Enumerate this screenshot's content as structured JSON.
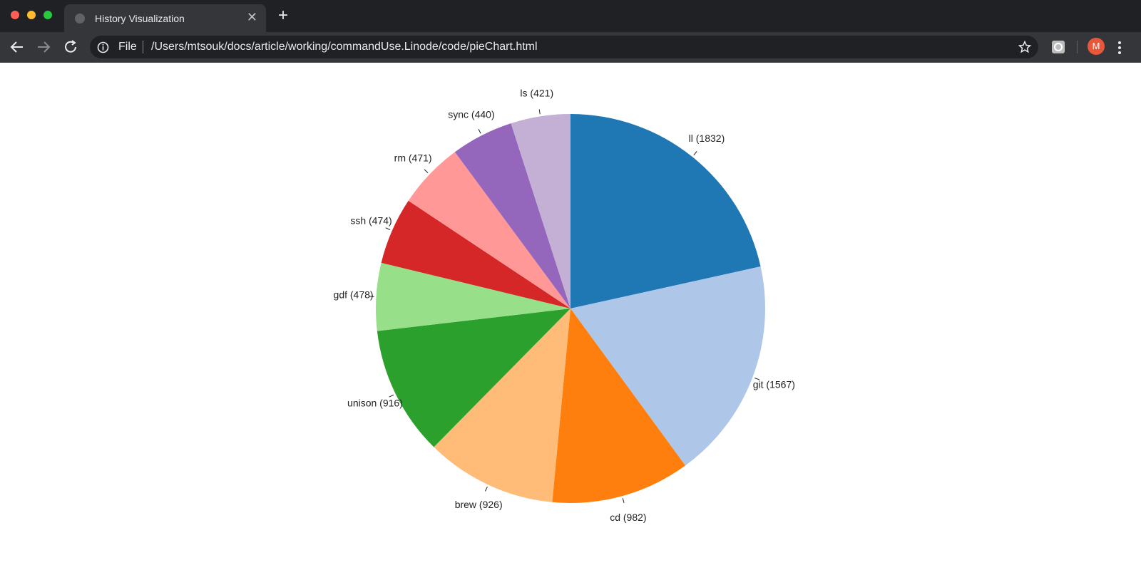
{
  "browser": {
    "tab_title": "History Visualization",
    "scheme": "File",
    "url": "/Users/mtsouk/docs/article/working/commandUse.Linode/code/pieChart.html",
    "profile_initial": "M"
  },
  "chart_data": {
    "type": "pie",
    "values": [
      1832,
      1567,
      982,
      926,
      916,
      478,
      474,
      471,
      440,
      421
    ],
    "value_labels": [
      "ll (1832)",
      "git (1567)",
      "cd (982)",
      "brew (926)",
      "unison (916)",
      "gdf (478)",
      "ssh (474)",
      "rm (471)",
      "sync (440)",
      "ls (421)"
    ],
    "colors": [
      "#1f77b4",
      "#aec7e8",
      "#ff7f0e",
      "#ffbb78",
      "#2ca02c",
      "#98df8a",
      "#d62728",
      "#ff9896",
      "#9467bd",
      "#c5b0d5"
    ]
  }
}
